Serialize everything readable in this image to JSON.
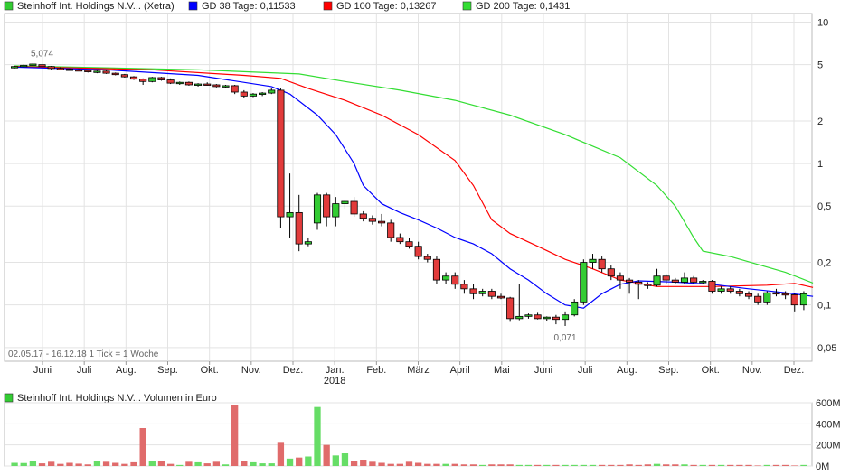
{
  "chart_data": [
    {
      "type": "candlestick",
      "scale": "log",
      "legend": [
        {
          "label": "Steinhoff Int. Holdings N.V... (Xetra)",
          "color": "#33cc33"
        },
        {
          "label": "GD 38 Tage: 0,11533",
          "color": "#0000ff"
        },
        {
          "label": "GD 100 Tage: 0,13267",
          "color": "#ff0000"
        },
        {
          "label": "GD 200 Tage: 0,1431",
          "color": "#33dd33"
        }
      ],
      "yticks": [
        {
          "v": 10,
          "t": "10"
        },
        {
          "v": 5,
          "t": "5"
        },
        {
          "v": 2,
          "t": "2"
        },
        {
          "v": 1,
          "t": "1"
        },
        {
          "v": 0.5,
          "t": "0,5"
        },
        {
          "v": 0.2,
          "t": "0,2"
        },
        {
          "v": 0.1,
          "t": "0,1"
        },
        {
          "v": 0.05,
          "t": "0,05"
        }
      ],
      "ylim": [
        0.04,
        11.5
      ],
      "xticks": [
        "Juni",
        "Juli",
        "Aug.",
        "Sep.",
        "Okt.",
        "Nov.",
        "Dez.",
        "Jan.",
        "Feb.",
        "März",
        "April",
        "Mai",
        "Juni",
        "Juli",
        "Aug.",
        "Sep.",
        "Okt.",
        "Nov.",
        "Dez."
      ],
      "year_label": {
        "after_tick": "Jan.",
        "text": "2018"
      },
      "range_note": "02.05.17 - 16.12.18   1 Tick = 1 Woche",
      "annotations": [
        {
          "text": "5,074",
          "at_candle": 3
        },
        {
          "text": "0,071",
          "at_candle": 60
        }
      ],
      "candles": [
        [
          4.8,
          4.9,
          4.7,
          4.85
        ],
        [
          4.85,
          5.0,
          4.8,
          4.95
        ],
        [
          4.95,
          5.1,
          4.9,
          5.05
        ],
        [
          5.0,
          5.07,
          4.75,
          4.85
        ],
        [
          4.85,
          4.9,
          4.6,
          4.7
        ],
        [
          4.7,
          4.8,
          4.6,
          4.65
        ],
        [
          4.65,
          4.7,
          4.55,
          4.6
        ],
        [
          4.6,
          4.65,
          4.5,
          4.55
        ],
        [
          4.55,
          4.6,
          4.4,
          4.45
        ],
        [
          4.45,
          4.55,
          4.35,
          4.5
        ],
        [
          4.5,
          4.55,
          4.3,
          4.35
        ],
        [
          4.35,
          4.4,
          4.2,
          4.25
        ],
        [
          4.25,
          4.3,
          4.05,
          4.1
        ],
        [
          4.1,
          4.15,
          3.9,
          3.95
        ],
        [
          3.95,
          4.0,
          3.6,
          3.8
        ],
        [
          3.8,
          4.1,
          3.75,
          4.05
        ],
        [
          4.05,
          4.1,
          3.85,
          3.9
        ],
        [
          3.9,
          4.0,
          3.65,
          3.7
        ],
        [
          3.7,
          3.8,
          3.6,
          3.75
        ],
        [
          3.75,
          3.8,
          3.55,
          3.6
        ],
        [
          3.6,
          3.7,
          3.5,
          3.65
        ],
        [
          3.65,
          3.75,
          3.55,
          3.6
        ],
        [
          3.6,
          3.65,
          3.45,
          3.5
        ],
        [
          3.5,
          3.6,
          3.4,
          3.55
        ],
        [
          3.55,
          3.6,
          3.1,
          3.2
        ],
        [
          3.2,
          3.3,
          2.9,
          3.0
        ],
        [
          3.0,
          3.15,
          2.95,
          3.1
        ],
        [
          3.1,
          3.2,
          3.0,
          3.15
        ],
        [
          3.15,
          3.4,
          3.1,
          3.3
        ],
        [
          3.3,
          3.4,
          0.35,
          0.42
        ],
        [
          0.42,
          0.85,
          0.3,
          0.45
        ],
        [
          0.45,
          0.6,
          0.24,
          0.27
        ],
        [
          0.27,
          0.3,
          0.26,
          0.28
        ],
        [
          0.38,
          0.62,
          0.34,
          0.6
        ],
        [
          0.6,
          0.62,
          0.36,
          0.42
        ],
        [
          0.42,
          0.58,
          0.36,
          0.52
        ],
        [
          0.52,
          0.55,
          0.48,
          0.54
        ],
        [
          0.54,
          0.58,
          0.42,
          0.44
        ],
        [
          0.44,
          0.46,
          0.39,
          0.41
        ],
        [
          0.41,
          0.43,
          0.37,
          0.39
        ],
        [
          0.39,
          0.44,
          0.36,
          0.38
        ],
        [
          0.38,
          0.4,
          0.28,
          0.3
        ],
        [
          0.3,
          0.32,
          0.27,
          0.28
        ],
        [
          0.28,
          0.3,
          0.25,
          0.26
        ],
        [
          0.26,
          0.28,
          0.21,
          0.22
        ],
        [
          0.22,
          0.23,
          0.2,
          0.21
        ],
        [
          0.21,
          0.22,
          0.14,
          0.15
        ],
        [
          0.15,
          0.17,
          0.14,
          0.16
        ],
        [
          0.16,
          0.17,
          0.13,
          0.14
        ],
        [
          0.14,
          0.15,
          0.12,
          0.13
        ],
        [
          0.13,
          0.14,
          0.11,
          0.12
        ],
        [
          0.12,
          0.13,
          0.115,
          0.125
        ],
        [
          0.125,
          0.13,
          0.11,
          0.115
        ],
        [
          0.115,
          0.12,
          0.11,
          0.112
        ],
        [
          0.112,
          0.114,
          0.076,
          0.08
        ],
        [
          0.08,
          0.14,
          0.078,
          0.083
        ],
        [
          0.083,
          0.087,
          0.08,
          0.085
        ],
        [
          0.085,
          0.088,
          0.079,
          0.08
        ],
        [
          0.08,
          0.083,
          0.077,
          0.082
        ],
        [
          0.082,
          0.085,
          0.073,
          0.079
        ],
        [
          0.079,
          0.09,
          0.071,
          0.085
        ],
        [
          0.085,
          0.11,
          0.083,
          0.105
        ],
        [
          0.105,
          0.21,
          0.1,
          0.2
        ],
        [
          0.2,
          0.23,
          0.18,
          0.21
        ],
        [
          0.21,
          0.22,
          0.17,
          0.18
        ],
        [
          0.18,
          0.19,
          0.15,
          0.16
        ],
        [
          0.16,
          0.17,
          0.13,
          0.15
        ],
        [
          0.15,
          0.155,
          0.12,
          0.145
        ],
        [
          0.145,
          0.15,
          0.11,
          0.14
        ],
        [
          0.14,
          0.145,
          0.13,
          0.138
        ],
        [
          0.138,
          0.18,
          0.135,
          0.16
        ],
        [
          0.16,
          0.165,
          0.14,
          0.15
        ],
        [
          0.15,
          0.155,
          0.14,
          0.145
        ],
        [
          0.145,
          0.17,
          0.14,
          0.155
        ],
        [
          0.155,
          0.16,
          0.14,
          0.145
        ],
        [
          0.145,
          0.15,
          0.14,
          0.147
        ],
        [
          0.147,
          0.15,
          0.12,
          0.125
        ],
        [
          0.125,
          0.135,
          0.12,
          0.13
        ],
        [
          0.13,
          0.135,
          0.12,
          0.125
        ],
        [
          0.125,
          0.13,
          0.115,
          0.12
        ],
        [
          0.12,
          0.125,
          0.11,
          0.115
        ],
        [
          0.115,
          0.12,
          0.1,
          0.105
        ],
        [
          0.105,
          0.125,
          0.1,
          0.122
        ],
        [
          0.122,
          0.13,
          0.115,
          0.12
        ],
        [
          0.12,
          0.125,
          0.11,
          0.118
        ],
        [
          0.118,
          0.12,
          0.09,
          0.1
        ],
        [
          0.1,
          0.125,
          0.092,
          0.12
        ]
      ],
      "ma38": [
        [
          0,
          4.8
        ],
        [
          10,
          4.6
        ],
        [
          20,
          4.2
        ],
        [
          28,
          3.5
        ],
        [
          30,
          3.1
        ],
        [
          33,
          2.2
        ],
        [
          35,
          1.6
        ],
        [
          37,
          1.0
        ],
        [
          38,
          0.7
        ],
        [
          40,
          0.52
        ],
        [
          42,
          0.45
        ],
        [
          44,
          0.4
        ],
        [
          46,
          0.35
        ],
        [
          48,
          0.3
        ],
        [
          50,
          0.27
        ],
        [
          52,
          0.23
        ],
        [
          54,
          0.18
        ],
        [
          56,
          0.15
        ],
        [
          58,
          0.12
        ],
        [
          60,
          0.1
        ],
        [
          62,
          0.095
        ],
        [
          64,
          0.12
        ],
        [
          66,
          0.14
        ],
        [
          68,
          0.148
        ],
        [
          72,
          0.145
        ],
        [
          76,
          0.14
        ],
        [
          80,
          0.13
        ],
        [
          84,
          0.122
        ],
        [
          87,
          0.115
        ]
      ],
      "ma100": [
        [
          0,
          4.85
        ],
        [
          15,
          4.6
        ],
        [
          25,
          4.2
        ],
        [
          29,
          4.0
        ],
        [
          32,
          3.4
        ],
        [
          36,
          2.8
        ],
        [
          40,
          2.2
        ],
        [
          44,
          1.6
        ],
        [
          48,
          1.05
        ],
        [
          50,
          0.7
        ],
        [
          52,
          0.4
        ],
        [
          54,
          0.32
        ],
        [
          57,
          0.26
        ],
        [
          60,
          0.21
        ],
        [
          63,
          0.18
        ],
        [
          66,
          0.15
        ],
        [
          70,
          0.135
        ],
        [
          76,
          0.135
        ],
        [
          82,
          0.138
        ],
        [
          85,
          0.142
        ],
        [
          87,
          0.133
        ]
      ],
      "ma200": [
        [
          0,
          4.9
        ],
        [
          20,
          4.6
        ],
        [
          31,
          4.3
        ],
        [
          36,
          3.8
        ],
        [
          42,
          3.3
        ],
        [
          48,
          2.8
        ],
        [
          54,
          2.2
        ],
        [
          60,
          1.6
        ],
        [
          66,
          1.1
        ],
        [
          70,
          0.7
        ],
        [
          72,
          0.5
        ],
        [
          74,
          0.3
        ],
        [
          75,
          0.24
        ],
        [
          78,
          0.22
        ],
        [
          84,
          0.17
        ],
        [
          87,
          0.143
        ]
      ],
      "volume": {
        "title": "Steinhoff Int. Holdings N.V... Volumen in Euro",
        "yticks": [
          {
            "v": 0,
            "t": "0M"
          },
          {
            "v": 200,
            "t": "200M"
          },
          {
            "v": 400,
            "t": "400M"
          },
          {
            "v": 600,
            "t": "600M"
          }
        ],
        "ymax": 600,
        "values": [
          30,
          28,
          45,
          25,
          40,
          20,
          30,
          22,
          15,
          50,
          40,
          30,
          20,
          35,
          25,
          50,
          45,
          20,
          10,
          40,
          35,
          25,
          40,
          15,
          55,
          45,
          35,
          25,
          25,
          30,
          70,
          80,
          90,
          60,
          120,
          100,
          60,
          45,
          55,
          40,
          30,
          20,
          20,
          40,
          30,
          20,
          20,
          20,
          20,
          15,
          15,
          10,
          15,
          15,
          15,
          10,
          10,
          10,
          10,
          10,
          10,
          10,
          10,
          10,
          10,
          10,
          10,
          15,
          10,
          15,
          20,
          15,
          15,
          15,
          10,
          10,
          10,
          10,
          10,
          10,
          10,
          5,
          10,
          10,
          10,
          5,
          10
        ],
        "extras": [
          [
            14,
            360
          ],
          [
            24,
            580
          ],
          [
            29,
            220
          ],
          [
            33,
            560
          ],
          [
            34,
            200
          ],
          [
            36,
            120
          ],
          [
            38,
            60
          ]
        ]
      }
    }
  ]
}
